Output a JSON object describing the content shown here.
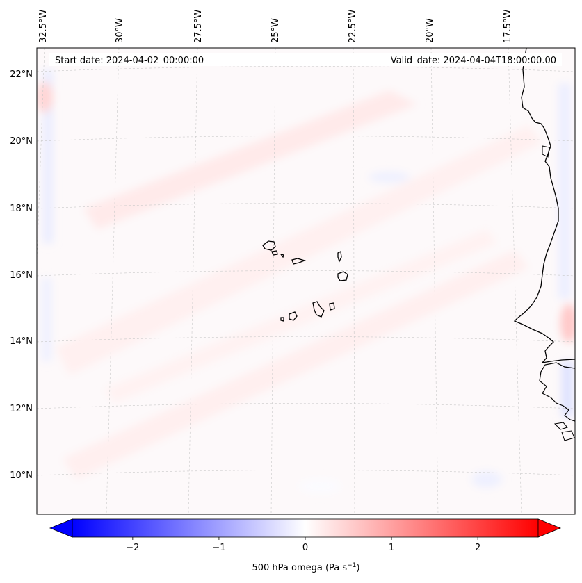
{
  "header": {
    "start_date": "Start date: 2024-04-02_00:00:00",
    "valid_date": "Valid_date: 2024-04-04T18:00:00.00"
  },
  "axes": {
    "lon_labels": [
      "32.5°W",
      "30°W",
      "27.5°W",
      "25°W",
      "22.5°W",
      "20°W",
      "17.5°W"
    ],
    "lat_labels": [
      "22°N",
      "20°N",
      "18°N",
      "16°N",
      "14°N",
      "12°N",
      "10°N"
    ]
  },
  "colorbar": {
    "label": "500 hPa omega (Pa s",
    "label_sup": "−1",
    "label_end": ")",
    "ticks": [
      "−2",
      "−1",
      "0",
      "1",
      "2"
    ],
    "min": -2.7,
    "max": 2.7,
    "colors": {
      "negative": "#0000ff",
      "zero": "#ffffff",
      "positive": "#ff0000"
    }
  },
  "map": {
    "projection": "lambert-conformal",
    "gridlines": true,
    "coastline_color": "#000000"
  }
}
